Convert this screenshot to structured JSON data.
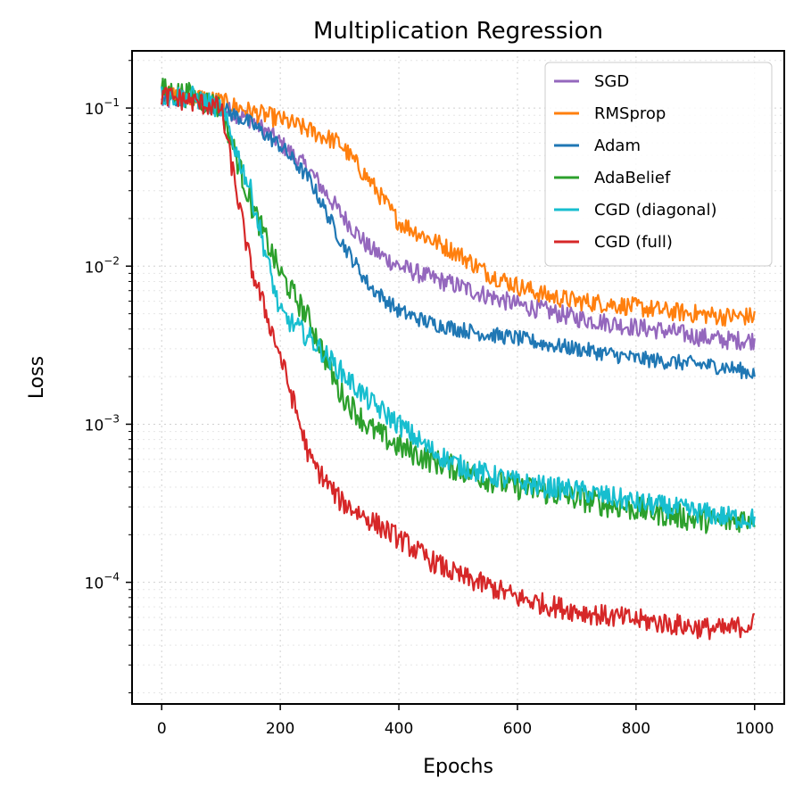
{
  "chart_data": {
    "type": "line",
    "title": "Multiplication Regression",
    "xlabel": "Epochs",
    "ylabel": "Loss",
    "xscale": "linear",
    "yscale": "log",
    "xlim": [
      -50,
      1050
    ],
    "ylim": [
      1.7e-05,
      0.23
    ],
    "xticks": [
      0,
      200,
      400,
      600,
      800,
      1000
    ],
    "xtick_labels": [
      "0",
      "200",
      "400",
      "600",
      "800",
      "1000"
    ],
    "yticks": [
      0.0001,
      0.001,
      0.01,
      0.1
    ],
    "ytick_labels": [
      {
        "base": "10",
        "exp": "−4"
      },
      {
        "base": "10",
        "exp": "−3"
      },
      {
        "base": "10",
        "exp": "−2"
      },
      {
        "base": "10",
        "exp": "−1"
      }
    ],
    "grid": true,
    "legend_position": "top-right",
    "x": [
      0,
      50,
      100,
      150,
      200,
      250,
      300,
      350,
      400,
      450,
      500,
      550,
      600,
      650,
      700,
      750,
      800,
      850,
      900,
      950,
      1000
    ],
    "series": [
      {
        "name": "SGD",
        "color": "#9467bd",
        "noise": 0.06,
        "values": [
          0.11,
          0.115,
          0.1,
          0.085,
          0.06,
          0.04,
          0.022,
          0.013,
          0.01,
          0.0085,
          0.0075,
          0.0065,
          0.0057,
          0.0052,
          0.0047,
          0.0044,
          0.0041,
          0.0039,
          0.0036,
          0.0034,
          0.0034
        ]
      },
      {
        "name": "RMSprop",
        "color": "#ff7f0e",
        "noise": 0.06,
        "values": [
          0.12,
          0.12,
          0.11,
          0.095,
          0.085,
          0.072,
          0.06,
          0.035,
          0.019,
          0.015,
          0.012,
          0.009,
          0.0075,
          0.0065,
          0.006,
          0.0058,
          0.0055,
          0.0052,
          0.005,
          0.0048,
          0.0048
        ]
      },
      {
        "name": "Adam",
        "color": "#1f77b4",
        "noise": 0.05,
        "values": [
          0.115,
          0.112,
          0.1,
          0.08,
          0.058,
          0.035,
          0.015,
          0.0075,
          0.0052,
          0.0044,
          0.004,
          0.0037,
          0.0035,
          0.0032,
          0.003,
          0.0028,
          0.0026,
          0.0025,
          0.0024,
          0.0023,
          0.0021
        ]
      },
      {
        "name": "AdaBelief",
        "color": "#2ca02c",
        "noise": 0.08,
        "values": [
          0.13,
          0.12,
          0.1,
          0.025,
          0.009,
          0.0045,
          0.0016,
          0.00095,
          0.00072,
          0.0006,
          0.00052,
          0.00045,
          0.0004,
          0.00037,
          0.00034,
          0.00031,
          0.00029,
          0.00027,
          0.00025,
          0.00024,
          0.00026
        ]
      },
      {
        "name": "CGD (diagonal)",
        "color": "#17becf",
        "noise": 0.07,
        "values": [
          0.12,
          0.118,
          0.1,
          0.03,
          0.005,
          0.0035,
          0.0022,
          0.0014,
          0.001,
          0.0007,
          0.00055,
          0.00048,
          0.00043,
          0.0004,
          0.00038,
          0.00035,
          0.00032,
          0.0003,
          0.00028,
          0.00026,
          0.00025
        ]
      },
      {
        "name": "CGD (full)",
        "color": "#d62728",
        "noise": 0.07,
        "values": [
          0.12,
          0.11,
          0.1,
          0.01,
          0.0027,
          0.0006,
          0.00033,
          0.00025,
          0.00019,
          0.00014,
          0.00011,
          9.5e-05,
          8e-05,
          7.2e-05,
          6.6e-05,
          6.1e-05,
          5.8e-05,
          5.5e-05,
          5.2e-05,
          5e-05,
          5.5e-05
        ]
      }
    ]
  }
}
